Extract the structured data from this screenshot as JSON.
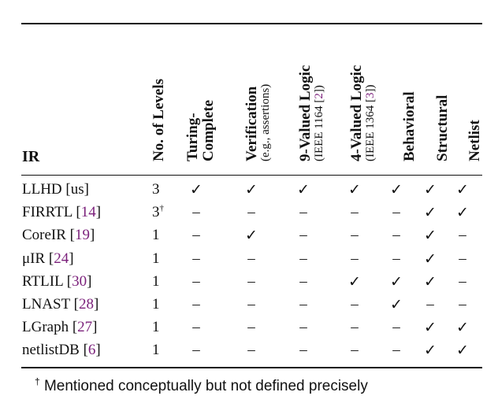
{
  "table": {
    "ir_header": "IR",
    "columns": [
      {
        "label": "No. of Levels",
        "sub": ""
      },
      {
        "label": "Turing-",
        "sub": "Complete"
      },
      {
        "label": "Verification",
        "sub": "(e.g., assertions)"
      },
      {
        "label": "9-Valued Logic",
        "sub_prefix": "(IEEE 1164 [",
        "sub_cite": "2",
        "sub_suffix": "])"
      },
      {
        "label": "4-Valued Logic",
        "sub_prefix": "(IEEE 1364 [",
        "sub_cite": "3",
        "sub_suffix": "])"
      },
      {
        "label": "Behavioral",
        "sub": ""
      },
      {
        "label": "Structural",
        "sub": ""
      },
      {
        "label": "Netlist",
        "sub": ""
      }
    ],
    "check_symbol": "✓",
    "dash_symbol": "–",
    "rows": [
      {
        "name": "LLHD [us]",
        "name_plain": "LLHD [us]",
        "cite": "",
        "levels": "3",
        "levels_sup": "",
        "marks": [
          "✓",
          "✓",
          "✓",
          "✓",
          "✓",
          "✓",
          "✓"
        ]
      },
      {
        "name_prefix": "FIRRTL [",
        "cite": "14",
        "name_suffix": "]",
        "levels": "3",
        "levels_sup": "†",
        "marks": [
          "–",
          "–",
          "–",
          "–",
          "–",
          "✓",
          "✓"
        ]
      },
      {
        "name_prefix": "CoreIR [",
        "cite": "19",
        "name_suffix": "]",
        "levels": "1",
        "levels_sup": "",
        "marks": [
          "–",
          "✓",
          "–",
          "–",
          "–",
          "✓",
          "–"
        ]
      },
      {
        "name_prefix": "μIR [",
        "cite": "24",
        "name_suffix": "]",
        "levels": "1",
        "levels_sup": "",
        "marks": [
          "–",
          "–",
          "–",
          "–",
          "–",
          "✓",
          "–"
        ]
      },
      {
        "name_prefix": "RTLIL [",
        "cite": "30",
        "name_suffix": "]",
        "levels": "1",
        "levels_sup": "",
        "marks": [
          "–",
          "–",
          "–",
          "✓",
          "✓",
          "✓",
          "–"
        ]
      },
      {
        "name_prefix": "LNAST [",
        "cite": "28",
        "name_suffix": "]",
        "levels": "1",
        "levels_sup": "",
        "marks": [
          "–",
          "–",
          "–",
          "–",
          "✓",
          "–",
          "–"
        ]
      },
      {
        "name_prefix": "LGraph [",
        "cite": "27",
        "name_suffix": "]",
        "levels": "1",
        "levels_sup": "",
        "marks": [
          "–",
          "–",
          "–",
          "–",
          "–",
          "✓",
          "✓"
        ]
      },
      {
        "name_prefix": "netlistDB [",
        "cite": "6",
        "name_suffix": "]",
        "levels": "1",
        "levels_sup": "",
        "marks": [
          "–",
          "–",
          "–",
          "–",
          "–",
          "✓",
          "✓"
        ]
      }
    ],
    "footnote_mark": "†",
    "footnote_text": "Mentioned conceptually but not defined precisely",
    "cite_color": "#7a1f7a"
  }
}
